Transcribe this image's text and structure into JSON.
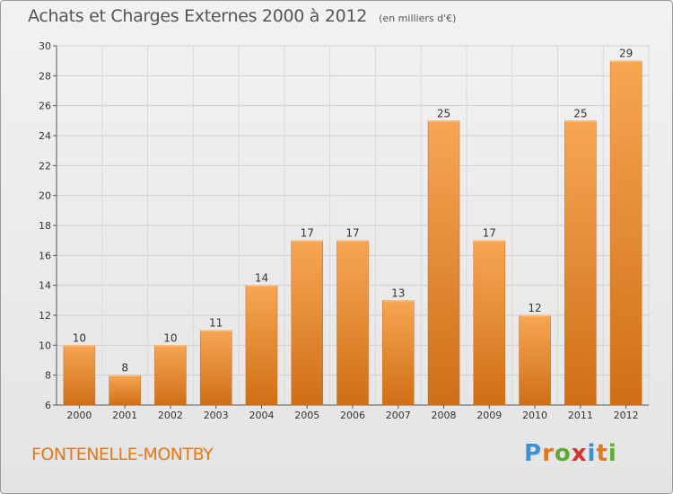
{
  "chart_data": {
    "type": "bar",
    "title": "Achats et Charges Externes 2000 à 2012",
    "units": "(en milliers d'€)",
    "categories": [
      "2000",
      "2001",
      "2002",
      "2003",
      "2004",
      "2005",
      "2006",
      "2007",
      "2008",
      "2009",
      "2010",
      "2011",
      "2012"
    ],
    "values": [
      10,
      8,
      10,
      11,
      14,
      17,
      17,
      13,
      25,
      17,
      12,
      25,
      29
    ],
    "ylim": [
      6,
      30
    ],
    "yticks": [
      6,
      8,
      10,
      12,
      14,
      16,
      18,
      20,
      22,
      24,
      26,
      28,
      30
    ],
    "grid": true,
    "bar_color": "#f08a2c",
    "bar_color_light": "#f7a654",
    "bar_color_dark": "#cf6f16"
  },
  "commune": "FONTENELLE-MONTBY",
  "brand": {
    "letters": [
      "P",
      "r",
      "o",
      "x",
      "i",
      "t",
      "i"
    ],
    "colors": [
      "#3d8fd6",
      "#e07a1c",
      "#5cae32",
      "#d6322f",
      "#3d8fd6",
      "#e07a1c",
      "#5cae32"
    ]
  }
}
